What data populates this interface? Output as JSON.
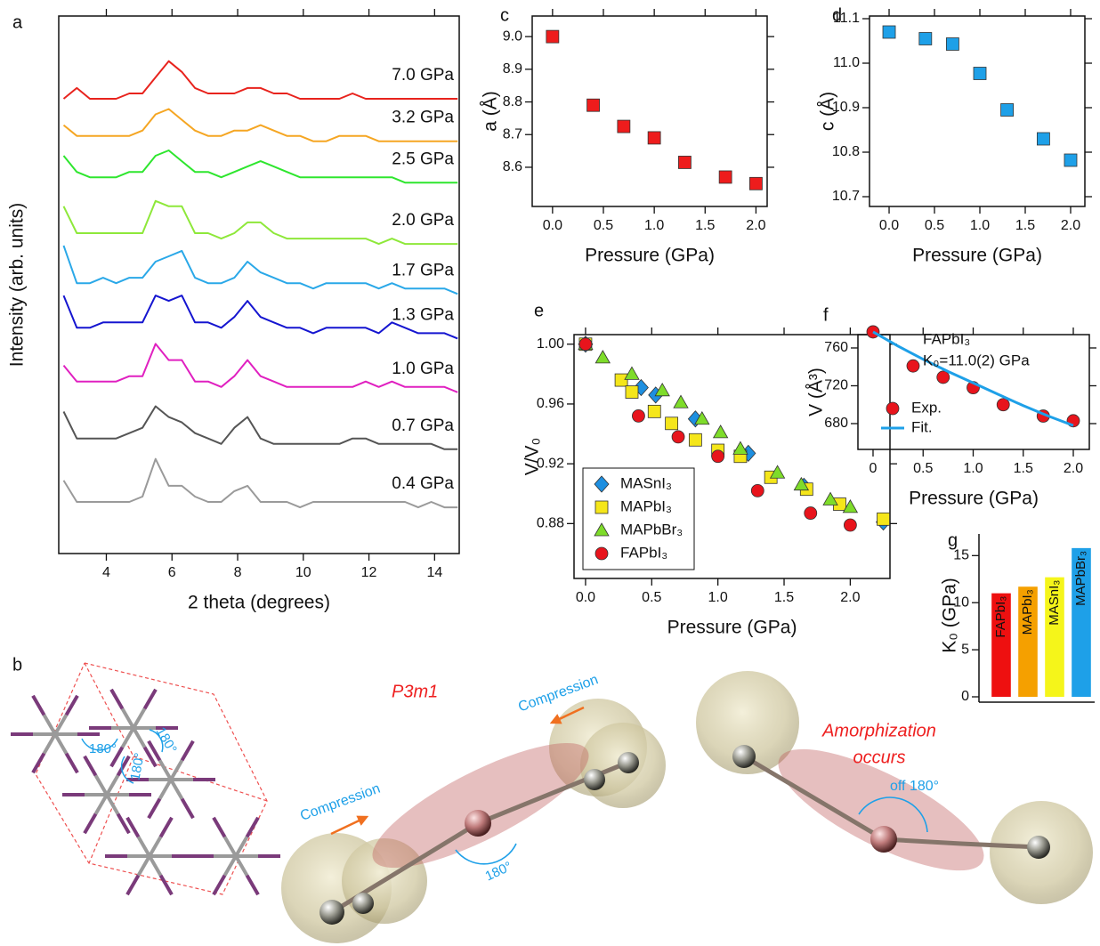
{
  "panel_labels": [
    "a",
    "b",
    "c",
    "d",
    "e",
    "f",
    "g"
  ],
  "chart_data": [
    {
      "type": "line",
      "xlabel": "2 theta (degrees)",
      "ylabel": "Intensity (arb. units)",
      "xlim": [
        2.55,
        14.75
      ],
      "ylim": [
        0,
        100
      ],
      "xticks": [
        4,
        6,
        8,
        10,
        12,
        14
      ],
      "x": [
        2.7,
        3.1,
        3.5,
        3.9,
        4.3,
        4.7,
        5.1,
        5.5,
        5.9,
        6.3,
        6.7,
        7.1,
        7.5,
        7.9,
        8.3,
        8.7,
        9.1,
        9.5,
        9.9,
        10.3,
        10.7,
        11.1,
        11.5,
        11.9,
        12.3,
        12.7,
        13.1,
        13.5,
        13.9,
        14.3,
        14.7
      ],
      "series": [
        {
          "name": "7.0 GPa",
          "color": "#e8231d",
          "values": [
            84.6,
            86.6,
            84.6,
            84.6,
            84.6,
            85.6,
            85.6,
            88.6,
            91.6,
            89.6,
            86.6,
            85.6,
            85.6,
            85.6,
            86.6,
            86.6,
            85.6,
            85.6,
            84.6,
            84.6,
            84.6,
            84.6,
            85.6,
            84.6,
            84.6,
            84.6,
            84.6,
            84.6,
            84.6,
            84.6,
            84.6
          ]
        },
        {
          "name": "3.2 GPa",
          "color": "#f5a623",
          "values": [
            79.7,
            77.7,
            77.7,
            77.7,
            77.7,
            77.7,
            78.7,
            81.7,
            82.7,
            80.7,
            78.7,
            77.7,
            77.7,
            78.7,
            78.7,
            79.7,
            78.7,
            77.7,
            77.7,
            76.7,
            76.7,
            77.7,
            77.7,
            77.7,
            76.7,
            76.7,
            76.7,
            76.7,
            76.7,
            76.7,
            76.7
          ]
        },
        {
          "name": "2.5 GPa",
          "color": "#2ee62e",
          "values": [
            74,
            71,
            70,
            70,
            70,
            71,
            71,
            74,
            75,
            73,
            71,
            71,
            70,
            71,
            72,
            73,
            72,
            71,
            70,
            70,
            70,
            70,
            70,
            70,
            70,
            70,
            69,
            69,
            69,
            69,
            69
          ]
        },
        {
          "name": "2.0 GPa",
          "color": "#8ee83a",
          "values": [
            64.6,
            59.6,
            59.6,
            59.6,
            59.6,
            59.6,
            59.6,
            65.6,
            64.6,
            64.6,
            59.6,
            59.6,
            58.6,
            59.6,
            61.6,
            61.6,
            59.6,
            58.6,
            58.6,
            58.6,
            58.6,
            58.6,
            58.6,
            58.6,
            57.6,
            58.6,
            57.6,
            57.6,
            57.6,
            57.6,
            57.6
          ]
        },
        {
          "name": "1.7 GPa",
          "color": "#2aa8e8",
          "values": [
            57.3,
            50.3,
            50.3,
            51.3,
            50.3,
            51.3,
            51.3,
            54.3,
            55.3,
            56.3,
            51.3,
            50.3,
            50.3,
            51.3,
            54.3,
            52.3,
            51.3,
            50.3,
            50.3,
            49.3,
            50.3,
            50.3,
            50.3,
            50.3,
            49.3,
            50.3,
            49.3,
            49.3,
            49.3,
            49.3,
            48.3
          ]
        },
        {
          "name": "1.3 GPa",
          "color": "#1515d0",
          "values": [
            48,
            42,
            42,
            43,
            43,
            43,
            43,
            48,
            47,
            48,
            43,
            43,
            42,
            44,
            47,
            44,
            43,
            42,
            42,
            41,
            42,
            42,
            42,
            42,
            41,
            43,
            42,
            41,
            41,
            41,
            40
          ]
        },
        {
          "name": "1.0 GPa",
          "color": "#e020c0",
          "values": [
            35,
            32,
            32,
            32,
            32,
            33,
            33,
            39,
            36,
            36,
            32,
            32,
            31,
            33,
            36,
            33,
            32,
            31,
            31,
            31,
            31,
            31,
            31,
            32,
            31,
            32,
            31,
            31,
            31,
            31,
            30
          ]
        },
        {
          "name": "0.7 GPa",
          "color": "#555555",
          "values": [
            26.4,
            21.4,
            21.4,
            21.4,
            21.4,
            22.4,
            23.4,
            27.4,
            25.4,
            24.4,
            22.4,
            21.4,
            20.4,
            23.4,
            25.4,
            21.4,
            20.4,
            20.4,
            20.4,
            20.4,
            20.4,
            20.4,
            21.4,
            21.4,
            20.4,
            20.4,
            20.4,
            20.4,
            20.4,
            19.4,
            19.4
          ]
        },
        {
          "name": "0.4 GPa",
          "color": "#9a9a9a",
          "values": [
            13.6,
            9.6,
            9.6,
            9.6,
            9.6,
            9.6,
            10.6,
            17.6,
            12.6,
            12.6,
            10.6,
            9.6,
            9.6,
            11.6,
            12.6,
            9.6,
            9.6,
            9.6,
            8.6,
            9.6,
            9.6,
            9.6,
            9.6,
            9.6,
            9.6,
            9.6,
            9.6,
            8.6,
            9.6,
            8.6,
            8.6
          ]
        }
      ]
    },
    {
      "type": "scatter",
      "xlabel": "Pressure (GPa)",
      "ylabel": "a (Å)",
      "xlim": [
        -0.2,
        2.11
      ],
      "ylim": [
        8.48,
        9.063
      ],
      "xticks": [
        {
          "value": 0,
          "label": "0.0"
        },
        0.5,
        {
          "value": 1,
          "label": "1.0"
        },
        1.5,
        {
          "value": 2,
          "label": "2.0"
        }
      ],
      "yticks": [
        8.6,
        8.7,
        8.8,
        8.9,
        {
          "value": 9,
          "label": "9.0"
        }
      ],
      "series": [
        {
          "marker": "square",
          "color": "#ee1c1c",
          "x": [
            0,
            0.4,
            0.7,
            1.0,
            1.3,
            1.7,
            2.0
          ],
          "values": [
            9.0,
            8.79,
            8.725,
            8.69,
            8.615,
            8.57,
            8.55
          ]
        }
      ]
    },
    {
      "type": "scatter",
      "xlabel": "Pressure (GPa)",
      "ylabel": "c (Å)",
      "xlim": [
        -0.216,
        2.157
      ],
      "ylim": [
        10.678,
        11.106
      ],
      "xticks": [
        {
          "value": 0,
          "label": "0.0"
        },
        0.5,
        {
          "value": 1,
          "label": "1.0"
        },
        1.5,
        {
          "value": 2,
          "label": "2.0"
        }
      ],
      "yticks": [
        10.7,
        10.8,
        10.9,
        {
          "value": 11,
          "label": "11.0"
        },
        11.1
      ],
      "series": [
        {
          "marker": "square",
          "color": "#1ea0e8",
          "x": [
            0,
            0.4,
            0.7,
            1.0,
            1.3,
            1.7,
            2.0
          ],
          "values": [
            11.07,
            11.055,
            11.043,
            10.977,
            10.895,
            10.83,
            10.782
          ]
        }
      ]
    },
    {
      "type": "scatter",
      "xlabel": "Pressure (GPa)",
      "ylabel": "V/V₀",
      "legend": "lower left",
      "xlim": [
        -0.087,
        2.3
      ],
      "ylim": [
        0.8433,
        1.0064
      ],
      "xticks": [
        {
          "value": 0,
          "label": "0.0"
        },
        0.5,
        {
          "value": 1,
          "label": "1.0"
        },
        1.5,
        {
          "value": 2,
          "label": "2.0"
        }
      ],
      "yticks": [
        0.88,
        0.92,
        0.96,
        {
          "value": 1,
          "label": "1.00"
        }
      ],
      "series": [
        {
          "name": "MASnI₃",
          "marker": "diamond",
          "color": "#1e8fe0",
          "x": [
            0,
            0.42,
            0.53,
            0.83,
            1.23,
            1.65,
            2.25
          ],
          "values": [
            1.0,
            0.971,
            0.966,
            0.95,
            0.927,
            0.905,
            0.881
          ]
        },
        {
          "name": "MAPbI₃",
          "marker": "square",
          "color": "#f5e61a",
          "x": [
            0,
            0.27,
            0.35,
            0.52,
            0.65,
            0.83,
            1.0,
            1.17,
            1.4,
            1.67,
            1.92,
            2.25
          ],
          "values": [
            1.0,
            0.976,
            0.968,
            0.955,
            0.947,
            0.936,
            0.929,
            0.925,
            0.911,
            0.903,
            0.893,
            0.883
          ]
        },
        {
          "name": "MAPbBr₃",
          "marker": "triangle",
          "color": "#7edc2a",
          "x": [
            0,
            0.13,
            0.35,
            0.58,
            0.72,
            0.88,
            1.02,
            1.17,
            1.45,
            1.63,
            1.85,
            2.0
          ],
          "values": [
            1.0,
            0.991,
            0.98,
            0.969,
            0.961,
            0.95,
            0.941,
            0.93,
            0.914,
            0.906,
            0.896,
            0.891
          ]
        },
        {
          "name": "FAPbI₃",
          "marker": "circle",
          "color": "#e8141c",
          "x": [
            0,
            0.4,
            0.7,
            1.0,
            1.3,
            1.7,
            2.0
          ],
          "values": [
            1.0,
            0.952,
            0.938,
            0.925,
            0.902,
            0.887,
            0.879
          ]
        }
      ]
    },
    {
      "type": "scatter",
      "xlabel": "Pressure (GPa)",
      "ylabel": "V (Å³)",
      "legend": "lower left",
      "annotations": [
        "FAPbI₃",
        "K₀=11.0(2) GPa"
      ],
      "xlim": [
        -0.151,
        2.16
      ],
      "ylim": [
        652.7,
        774.1
      ],
      "xticks": [
        0,
        0.5,
        {
          "value": 1,
          "label": "1.0"
        },
        1.5,
        {
          "value": 2,
          "label": "2.0"
        }
      ],
      "yticks": [
        680,
        720,
        760
      ],
      "series": [
        {
          "name": "Exp.",
          "marker": "circle",
          "color": "#e8141c",
          "x": [
            0,
            0.4,
            0.7,
            1.0,
            1.3,
            1.7,
            2.0
          ],
          "values": [
            777,
            741,
            729,
            718,
            700,
            688,
            683
          ]
        },
        {
          "name": "Fit.",
          "marker": "line",
          "color": "#1ea0e8",
          "x": [
            0,
            0.25,
            0.5,
            0.75,
            1.0,
            1.25,
            1.5,
            1.75,
            2.0
          ],
          "values": [
            777,
            762,
            748,
            735,
            723,
            711,
            699,
            688,
            678
          ]
        }
      ]
    },
    {
      "type": "bar",
      "ylabel": "K₀ (GPa)",
      "ylim": [
        0,
        17.3
      ],
      "yticks": [
        0,
        5,
        10,
        15
      ],
      "categories": [
        "FAPbI₃",
        "MAPbI₃",
        "MASnI₃",
        "MAPbBr₃"
      ],
      "values": [
        11.0,
        11.7,
        12.7,
        15.8
      ],
      "colors": [
        "#ee1010",
        "#f5a000",
        "#f5f51a",
        "#1ea0e8"
      ]
    }
  ],
  "diagram": {
    "space_group": "P3m1",
    "compression_labels": [
      "Compression",
      "Compression"
    ],
    "angle_labels": [
      "180°",
      "180°",
      "180°",
      "180°"
    ],
    "amorphization": [
      "Amorphization",
      "occurs"
    ],
    "off_angle": "off 180°"
  }
}
